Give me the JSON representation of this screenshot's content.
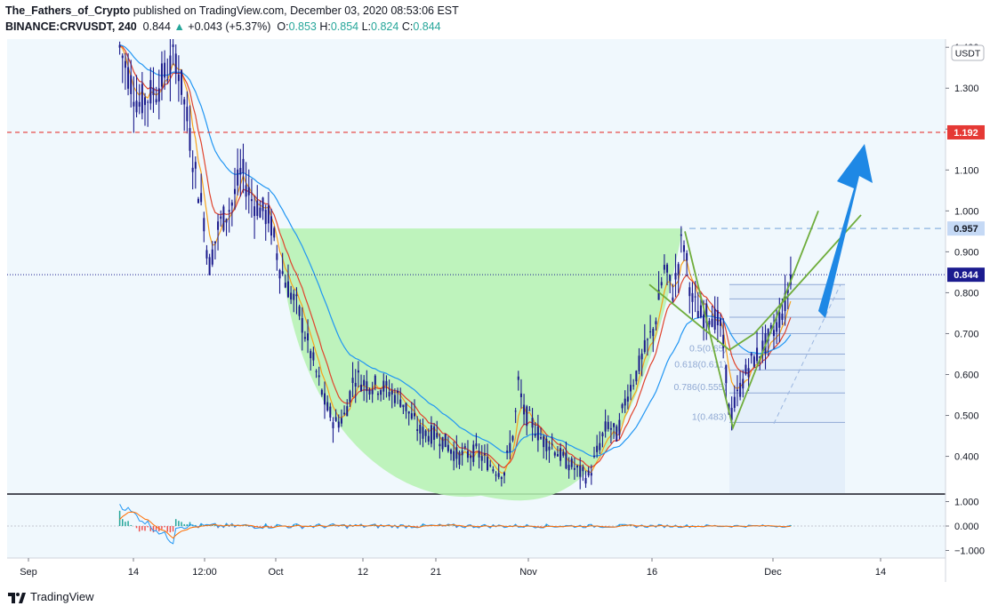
{
  "header": {
    "author": "The_Fathers_of_Crypto",
    "published": "published on TradingView.com, December 03, 2020 08:53:06 EST",
    "symbol": "BINANCE:CRVUSDT, 240",
    "last": "0.844",
    "change": "+0.043 (+5.37%)",
    "o_label": "O:",
    "o_val": "0.853",
    "h_label": "H:",
    "h_val": "0.854",
    "l_label": "L:",
    "l_val": "0.824",
    "c_label": "C:",
    "c_val": "0.844"
  },
  "footer": {
    "brand": "TradingView"
  },
  "colors": {
    "bg": "#f0f8fd",
    "candle": "#1a1a8c",
    "ema_red": "#e0432c",
    "ema_orange": "#f7a21b",
    "ema_blue": "#2196f3",
    "cup_fill": "#b5f2b0",
    "channel": "#6fad3c",
    "resistance": "#e53935",
    "target": "#1e88e5"
  },
  "chart_data": {
    "type": "candlestick",
    "currency_badge": "USDT",
    "ylim": [
      0.31,
      1.42
    ],
    "y_ticks": [
      "1.400",
      "1.300",
      "1.200",
      "1.100",
      "1.000",
      "0.900",
      "0.800",
      "0.700",
      "0.600",
      "0.500",
      "0.400"
    ],
    "x_ticks": [
      "Sep",
      "14",
      "12:00",
      "Oct",
      "12",
      "21",
      "Nov",
      "16",
      "Dec",
      "14"
    ],
    "price_tags": [
      {
        "label": "1.192",
        "value": 1.192,
        "color": "#e53935"
      },
      {
        "label": "0.957",
        "value": 0.957,
        "color": "#c5d9f5"
      },
      {
        "label": "0.844",
        "value": 0.844,
        "color": "#1b1b8f"
      }
    ],
    "price_path": [
      [
        0.12,
        1.4
      ],
      [
        0.14,
        1.26
      ],
      [
        0.16,
        1.3
      ],
      [
        0.18,
        1.38
      ],
      [
        0.19,
        1.25
      ],
      [
        0.2,
        1.1
      ],
      [
        0.21,
        0.98
      ],
      [
        0.215,
        0.86
      ],
      [
        0.225,
        0.96
      ],
      [
        0.24,
        1.02
      ],
      [
        0.25,
        1.1
      ],
      [
        0.26,
        1.03
      ],
      [
        0.28,
        0.98
      ],
      [
        0.29,
        0.87
      ],
      [
        0.3,
        0.81
      ],
      [
        0.31,
        0.76
      ],
      [
        0.32,
        0.68
      ],
      [
        0.33,
        0.6
      ],
      [
        0.34,
        0.52
      ],
      [
        0.35,
        0.48
      ],
      [
        0.36,
        0.5
      ],
      [
        0.37,
        0.6
      ],
      [
        0.38,
        0.58
      ],
      [
        0.4,
        0.57
      ],
      [
        0.42,
        0.54
      ],
      [
        0.44,
        0.46
      ],
      [
        0.46,
        0.45
      ],
      [
        0.48,
        0.4
      ],
      [
        0.5,
        0.41
      ],
      [
        0.52,
        0.37
      ],
      [
        0.53,
        0.36
      ],
      [
        0.535,
        0.42
      ],
      [
        0.54,
        0.46
      ],
      [
        0.545,
        0.58
      ],
      [
        0.55,
        0.51
      ],
      [
        0.56,
        0.48
      ],
      [
        0.57,
        0.44
      ],
      [
        0.58,
        0.43
      ],
      [
        0.59,
        0.4
      ],
      [
        0.6,
        0.38
      ],
      [
        0.61,
        0.36
      ],
      [
        0.62,
        0.35
      ],
      [
        0.63,
        0.42
      ],
      [
        0.64,
        0.48
      ],
      [
        0.65,
        0.45
      ],
      [
        0.66,
        0.55
      ],
      [
        0.67,
        0.6
      ],
      [
        0.68,
        0.66
      ],
      [
        0.69,
        0.72
      ],
      [
        0.7,
        0.86
      ],
      [
        0.71,
        0.8
      ],
      [
        0.72,
        0.94
      ],
      [
        0.73,
        0.78
      ],
      [
        0.74,
        0.74
      ],
      [
        0.75,
        0.75
      ],
      [
        0.76,
        0.72
      ],
      [
        0.765,
        0.64
      ],
      [
        0.77,
        0.49
      ],
      [
        0.78,
        0.56
      ],
      [
        0.79,
        0.62
      ],
      [
        0.8,
        0.65
      ],
      [
        0.81,
        0.68
      ],
      [
        0.82,
        0.72
      ],
      [
        0.83,
        0.78
      ],
      [
        0.835,
        0.844
      ]
    ],
    "cup": {
      "left_date_frac": 0.29,
      "right_date_frac": 0.72,
      "rim": 0.957,
      "bottom": 0.33
    },
    "resistance_level": 1.192,
    "fib_levels": [
      {
        "ratio": "0.5",
        "value": 0.65,
        "label": "0.5(0.65)"
      },
      {
        "ratio": "0.618",
        "value": 0.611,
        "label": "0.618(0.611)"
      },
      {
        "ratio": "0.786",
        "value": 0.555,
        "label": "0.786(0.555)"
      },
      {
        "ratio": "1",
        "value": 0.483,
        "label": "1(0.483)"
      }
    ],
    "oscillator": {
      "y_ticks": [
        "1.000",
        "0.000",
        "−1.000"
      ],
      "ylim": [
        -1.2,
        1.2
      ]
    }
  }
}
